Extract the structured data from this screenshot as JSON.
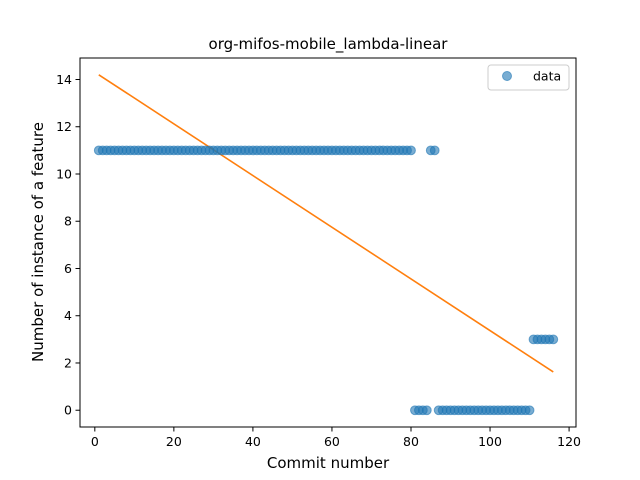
{
  "chart_data": {
    "type": "scatter",
    "title": "org-mifos-mobile_lambda-linear",
    "xlabel": "Commit number",
    "ylabel": "Number of instance of a feature",
    "xlim": [
      -3.75,
      121.75
    ],
    "ylim": [
      -0.71,
      14.91
    ],
    "xticks": [
      0,
      20,
      40,
      60,
      80,
      100,
      120
    ],
    "yticks": [
      0,
      2,
      4,
      6,
      8,
      10,
      12,
      14
    ],
    "grid": false,
    "legend": {
      "placement": "top-right",
      "entries": [
        "data"
      ]
    },
    "colors": {
      "data": "#1f77b4",
      "fit": "#ff7f0e"
    },
    "series": [
      {
        "name": "data",
        "kind": "scatter",
        "segments": [
          {
            "x_from": 1,
            "x_to": 80,
            "y": 11
          },
          {
            "x_from": 85,
            "x_to": 86,
            "y": 11
          },
          {
            "x_from": 81,
            "x_to": 84,
            "y": 0
          },
          {
            "x_from": 87,
            "x_to": 110,
            "y": 0
          },
          {
            "x_from": 111,
            "x_to": 116,
            "y": 3
          }
        ]
      },
      {
        "kind": "line",
        "x": [
          1,
          116
        ],
        "y": [
          14.2,
          1.62
        ]
      }
    ]
  }
}
